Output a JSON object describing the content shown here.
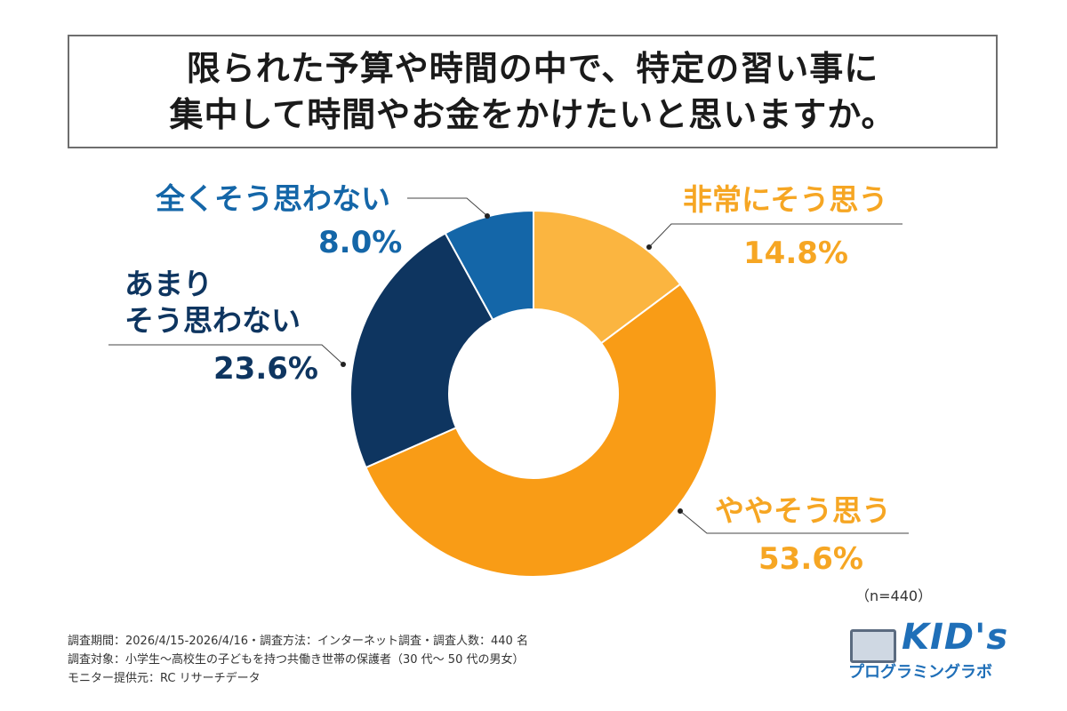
{
  "title": {
    "line1": "限られた予算や時間の中で、特定の習い事に",
    "line2": "集中して時間やお金をかけたいと思いますか。"
  },
  "chart_data": {
    "type": "pie",
    "categories": [
      "非常にそう思う",
      "ややそう思う",
      "あまりそう思わない",
      "全くそう思わない"
    ],
    "values": [
      14.8,
      53.6,
      23.6,
      8.0
    ],
    "value_labels": [
      "14.8%",
      "53.6%",
      "23.6%",
      "8.0%"
    ],
    "colors": [
      "#fbb540",
      "#f99c16",
      "#0e3560",
      "#1466a8"
    ],
    "label_colors": [
      "#f6a623",
      "#f6a623",
      "#0e3560",
      "#1466a8"
    ],
    "start_angle_deg": 0,
    "direction": "clockwise",
    "donut": true
  },
  "labels": {
    "very": "非常にそう思う",
    "somewhat": "ややそう思う",
    "notmuch_line1": "あまり",
    "notmuch_line2": "そう思わない",
    "notatall": "全くそう思わない"
  },
  "sample_size": "（n=440）",
  "footer": {
    "line1": "調査期間：2026/4/15-2026/4/16・調査方法：インターネット調査・調査人数：440 名",
    "line2": "調査対象：小学生～高校生の子どもを持つ共働き世帯の保護者（30 代～ 50 代の男女）",
    "line3": "モニター提供元：RC リサーチデータ"
  },
  "logo": {
    "main": "KID's",
    "sub": "プログラミングラボ"
  }
}
